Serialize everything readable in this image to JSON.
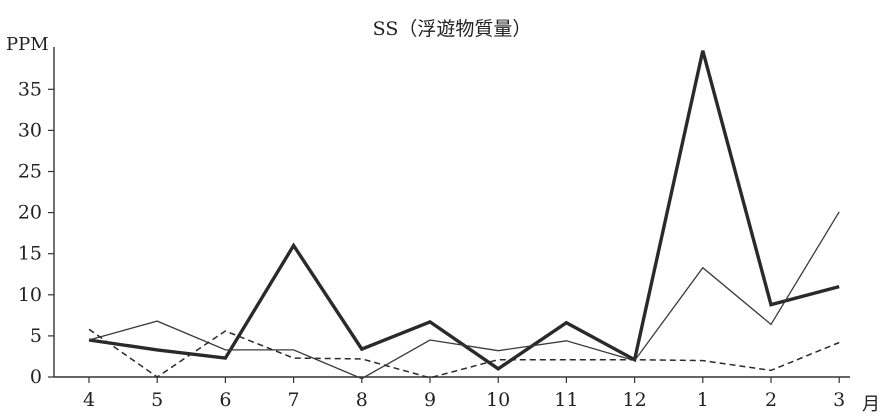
{
  "chart_data": {
    "type": "line",
    "title": "SS（浮遊物質量）",
    "ylabel": "PPM",
    "xlabel": "月",
    "categories": [
      "4",
      "5",
      "6",
      "7",
      "8",
      "9",
      "10",
      "11",
      "12",
      "1",
      "2",
      "3"
    ],
    "yticks": [
      0,
      5,
      10,
      15,
      20,
      25,
      30,
      35
    ],
    "ylim": [
      0,
      40
    ],
    "grid": false,
    "legend": "none",
    "series": [
      {
        "style": "thick-solid",
        "color": "#2a2a2a",
        "values": [
          4.5,
          3.3,
          2.3,
          16.0,
          3.4,
          6.7,
          1.0,
          6.6,
          2.1,
          39.7,
          8.8,
          11.0
        ]
      },
      {
        "style": "thin-solid",
        "color": "#3a3a3a",
        "values": [
          4.5,
          6.8,
          3.3,
          3.3,
          -0.2,
          4.5,
          3.2,
          4.4,
          2.0,
          13.3,
          6.4,
          20.1
        ]
      },
      {
        "style": "dashed",
        "color": "#2a2a2a",
        "values": [
          5.8,
          0.0,
          5.6,
          2.3,
          2.2,
          -0.1,
          2.1,
          2.1,
          2.1,
          2.0,
          0.8,
          4.2
        ]
      }
    ]
  }
}
